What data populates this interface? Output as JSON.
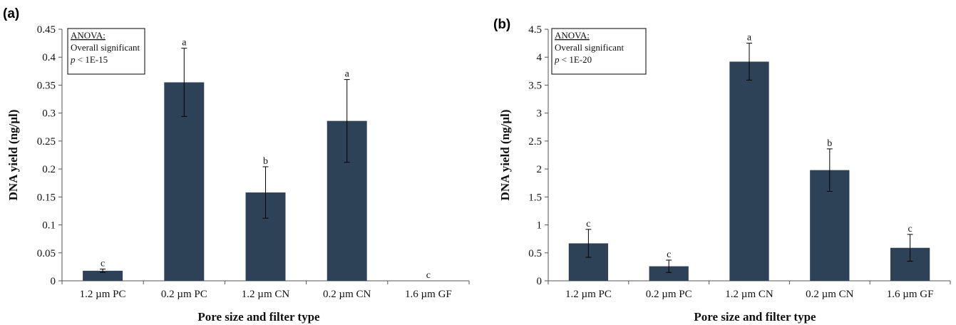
{
  "chart_data": [
    {
      "panel": "(a)",
      "type": "bar",
      "categories": [
        "1.2 µm PC",
        "0.2 µm PC",
        "1.2 µm CN",
        "0.2 µm CN",
        "1.6 µm GF"
      ],
      "values": [
        0.018,
        0.355,
        0.158,
        0.286,
        0
      ],
      "errors": [
        0.003,
        0.061,
        0.046,
        0.074,
        0
      ],
      "significance": [
        "c",
        "a",
        "b",
        "a",
        "c"
      ],
      "xlabel": "Pore size and filter type",
      "ylabel": "DNA yield (ng/µl)",
      "ylim": [
        0,
        0.45
      ],
      "yticks": [
        0,
        0.05,
        0.1,
        0.15,
        0.2,
        0.25,
        0.3,
        0.35,
        0.4,
        0.45
      ],
      "ytick_labels": [
        "0",
        "0.05",
        "0.1",
        "0.15",
        "0.2",
        "0.25",
        "0.3",
        "0.35",
        "0.4",
        "0.45"
      ],
      "annotation": {
        "title": "ANOVA:",
        "line1": "Overall significant",
        "p_symbol": "p",
        "p_rest": " < 1E-15"
      },
      "bar_color": "#2d4257",
      "grid": false
    },
    {
      "panel": "(b)",
      "type": "bar",
      "categories": [
        "1.2 µm PC",
        "0.2 µm PC",
        "1.2 µm CN",
        "0.2 µm CN",
        "1.6 µm GF"
      ],
      "values": [
        0.67,
        0.26,
        3.92,
        1.98,
        0.59
      ],
      "errors": [
        0.25,
        0.11,
        0.33,
        0.38,
        0.24
      ],
      "significance": [
        "c",
        "c",
        "a",
        "b",
        "c"
      ],
      "xlabel": "Pore size and filter type",
      "ylabel": "DNA yield (ng/µl)",
      "ylim": [
        0,
        4.5
      ],
      "yticks": [
        0,
        0.5,
        1,
        1.5,
        2,
        2.5,
        3,
        3.5,
        4,
        4.5
      ],
      "ytick_labels": [
        "0",
        "0.5",
        "1",
        "1.5",
        "2",
        "2.5",
        "3",
        "3.5",
        "4",
        "4.5"
      ],
      "annotation": {
        "title": "ANOVA:",
        "line1": "Overall significant",
        "p_symbol": "p",
        "p_rest": " < 1E-20"
      },
      "bar_color": "#2d4257",
      "grid": false
    }
  ]
}
